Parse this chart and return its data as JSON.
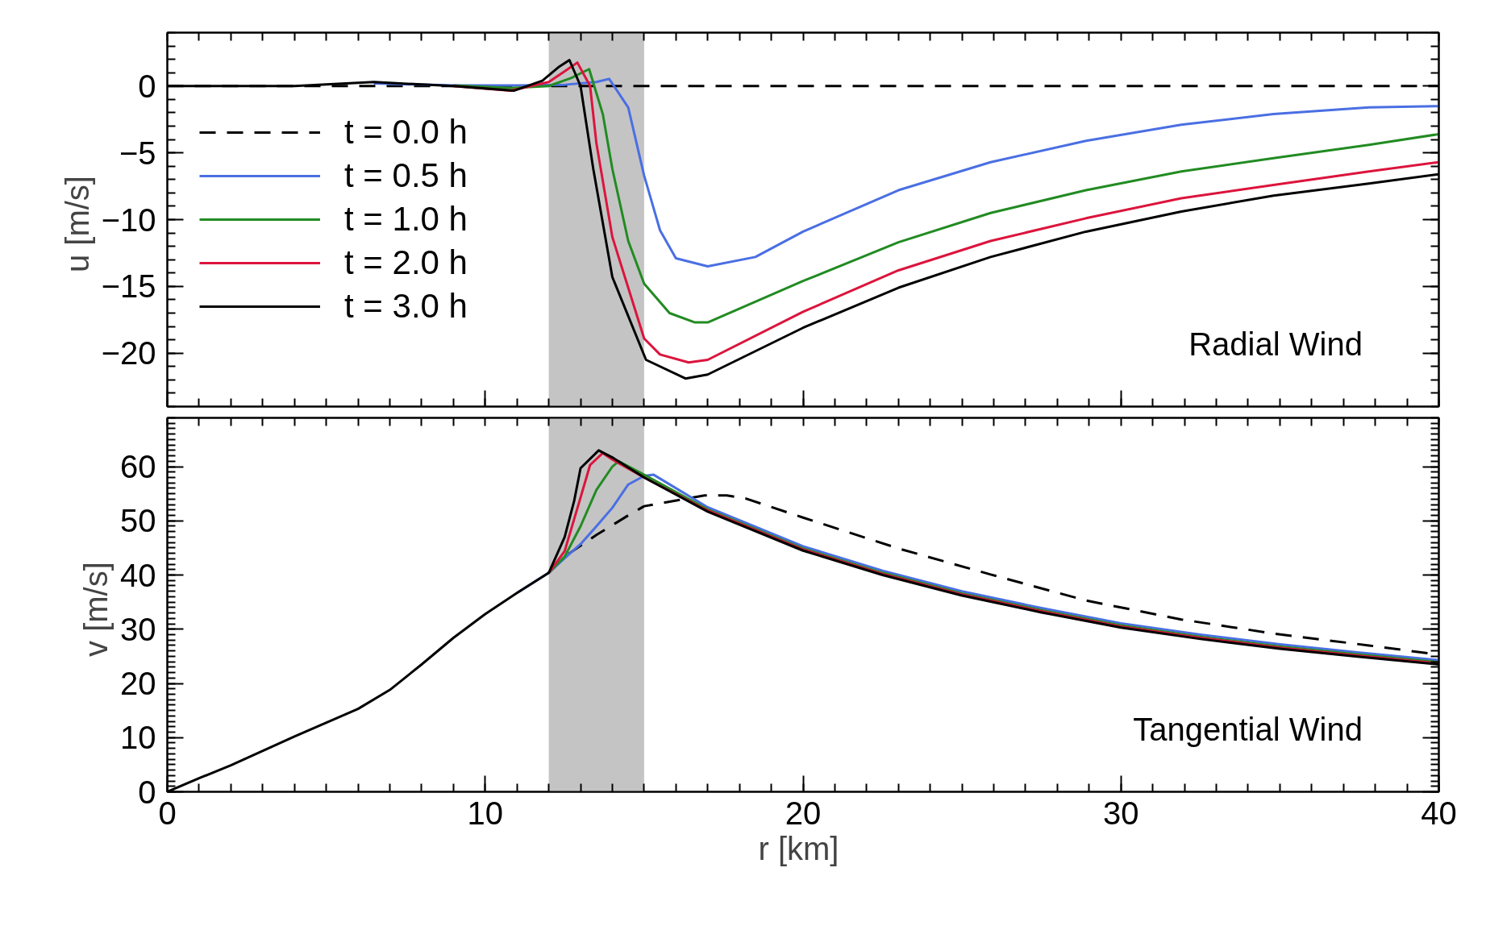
{
  "chart_data": [
    {
      "type": "line",
      "ylabel": "u  [m/s]",
      "annotations": [
        "Radial Wind"
      ],
      "xlim": [
        0,
        40
      ],
      "xticks": [
        0,
        10,
        20,
        30,
        40
      ],
      "ylim": [
        -24,
        4
      ],
      "yticks": [
        -20,
        -15,
        -10,
        -5,
        0
      ],
      "tick_labels": "y",
      "grid": false,
      "legend": "left",
      "bands": [
        {
          "axis": "x",
          "from": 12,
          "to": 15,
          "color": "#c4c4c4"
        }
      ],
      "series": [
        {
          "name": "t = 0.0 h",
          "color": "#000000",
          "line_style": "dashed",
          "x": [
            0,
            40
          ],
          "values": [
            0,
            0
          ]
        },
        {
          "name": "t = 0.5 h",
          "color": "#4a6fe3",
          "x": [
            6.5,
            9,
            11,
            12.5,
            13.5,
            13.9,
            14.5,
            15,
            15.5,
            16,
            17,
            18.5,
            20,
            23,
            25.9,
            28.9,
            31.9,
            34.8,
            37.8,
            40
          ],
          "values": [
            0.2,
            0.05,
            0.05,
            0.1,
            0.3,
            0.54,
            -1.6,
            -6.7,
            -10.8,
            -12.9,
            -13.5,
            -12.8,
            -10.9,
            -7.8,
            -5.7,
            -4.1,
            -2.9,
            -2.1,
            -1.6,
            -1.5
          ]
        },
        {
          "name": "t = 1.0 h",
          "color": "#228b22",
          "x": [
            9,
            10.8,
            12,
            12.7,
            13.27,
            13.7,
            14,
            14.5,
            15,
            15.8,
            16.6,
            17,
            20,
            23,
            25.9,
            28.9,
            31.9,
            34.8,
            37.8,
            40
          ],
          "values": [
            0.05,
            -0.15,
            0,
            0.6,
            1.27,
            -2.1,
            -6.2,
            -11.6,
            -14.8,
            -17,
            -17.7,
            -17.7,
            -14.6,
            -11.7,
            -9.5,
            -7.8,
            -6.4,
            -5.4,
            -4.4,
            -3.6
          ]
        },
        {
          "name": "t = 2.0 h",
          "color": "#dc143c",
          "x": [
            9,
            10.8,
            12,
            12.5,
            12.9,
            13.3,
            13.5,
            14,
            15,
            15.5,
            16.4,
            17,
            20,
            23,
            25.9,
            28.9,
            31.9,
            34.8,
            37.8,
            40
          ],
          "values": [
            0,
            -0.35,
            0.3,
            1.1,
            1.76,
            0,
            -4.3,
            -11.3,
            -18.9,
            -20.1,
            -20.7,
            -20.5,
            -16.9,
            -13.8,
            -11.6,
            -9.9,
            -8.4,
            -7.4,
            -6.4,
            -5.7
          ]
        },
        {
          "name": "t = 3.0 h",
          "color": "#000000",
          "x": [
            0,
            4,
            6.5,
            9,
            10.9,
            11.8,
            12.3,
            12.65,
            13,
            13.4,
            14,
            15.06,
            16.3,
            17,
            20,
            23,
            25.9,
            28.9,
            31.9,
            34.8,
            37.8,
            40
          ],
          "values": [
            0,
            0,
            0.3,
            0,
            -0.35,
            0.4,
            1.4,
            1.95,
            0,
            -6.2,
            -14.3,
            -20.5,
            -21.9,
            -21.6,
            -18.1,
            -15.1,
            -12.8,
            -10.9,
            -9.4,
            -8.2,
            -7.3,
            -6.6
          ]
        }
      ]
    },
    {
      "type": "line",
      "xlabel": "r  [km]",
      "ylabel": "v  [m/s]",
      "annotations": [
        "Tangential Wind"
      ],
      "xlim": [
        0,
        40
      ],
      "xticks": [
        0,
        10,
        20,
        30,
        40
      ],
      "ylim": [
        0,
        69
      ],
      "yticks": [
        0,
        10,
        20,
        30,
        40,
        50,
        60
      ],
      "grid": false,
      "legend": false,
      "bands": [
        {
          "axis": "x",
          "from": 12,
          "to": 15,
          "color": "#c4c4c4"
        }
      ],
      "series": [
        {
          "color": "#000000",
          "line_style": "dashed",
          "x": [
            12,
            12.5,
            13.5,
            14.5,
            15,
            16.9,
            17.6,
            18.2,
            20,
            23,
            25.9,
            28.9,
            31.9,
            34.8,
            37.8,
            40
          ],
          "values": [
            40.4,
            43.4,
            47.4,
            51,
            52.7,
            54.7,
            54.7,
            54.1,
            50.6,
            44.9,
            40.1,
            35.3,
            31.8,
            29.2,
            27,
            25.3
          ]
        },
        {
          "color": "#4a6fe3",
          "x": [
            11,
            12,
            12.5,
            13,
            13.5,
            14,
            14.5,
            15,
            15.3,
            17,
            20,
            22.5,
            25,
            27.5,
            30,
            32.5,
            35,
            37.5,
            40
          ],
          "values": [
            36.7,
            40.4,
            43.1,
            45.7,
            49,
            52.4,
            56.7,
            58.3,
            58.5,
            52.5,
            45.3,
            40.8,
            37,
            33.9,
            31.1,
            29,
            27.2,
            25.7,
            24.3
          ]
        },
        {
          "color": "#228b22",
          "x": [
            12,
            12.5,
            13,
            13.5,
            14,
            14.2,
            15,
            17,
            20,
            22.5,
            25,
            27.5,
            30,
            32.5,
            35,
            37.5,
            40
          ],
          "values": [
            40.4,
            43.4,
            49,
            55.7,
            60,
            61,
            58.5,
            52.1,
            44.9,
            40.4,
            36.6,
            33.5,
            30.7,
            28.6,
            26.8,
            25.3,
            23.9
          ]
        },
        {
          "color": "#dc143c",
          "x": [
            12,
            12.5,
            13,
            13.3,
            13.7,
            14,
            15,
            17,
            20,
            22.5,
            25,
            27.5,
            30,
            32.5,
            35,
            37.5,
            40
          ],
          "values": [
            40.4,
            44.4,
            54.3,
            60.3,
            62.5,
            61.3,
            58,
            51.9,
            44.7,
            40.2,
            36.4,
            33.3,
            30.5,
            28.4,
            26.6,
            25.1,
            23.7
          ]
        },
        {
          "color": "#000000",
          "x": [
            0,
            1,
            2,
            4,
            6,
            7,
            8,
            9,
            10,
            11,
            12,
            12.5,
            12.8,
            13,
            13.57,
            14,
            15,
            17,
            20,
            22.5,
            25,
            27.5,
            30,
            32.5,
            35,
            37.5,
            40
          ],
          "values": [
            0,
            2.5,
            4.9,
            10.2,
            15.3,
            18.8,
            23.5,
            28.4,
            32.8,
            36.7,
            40.4,
            47,
            53.7,
            59.7,
            63,
            61.7,
            58,
            51.7,
            44.5,
            40,
            36.2,
            33.1,
            30.3,
            28.2,
            26.4,
            24.9,
            23.5
          ]
        }
      ]
    }
  ]
}
